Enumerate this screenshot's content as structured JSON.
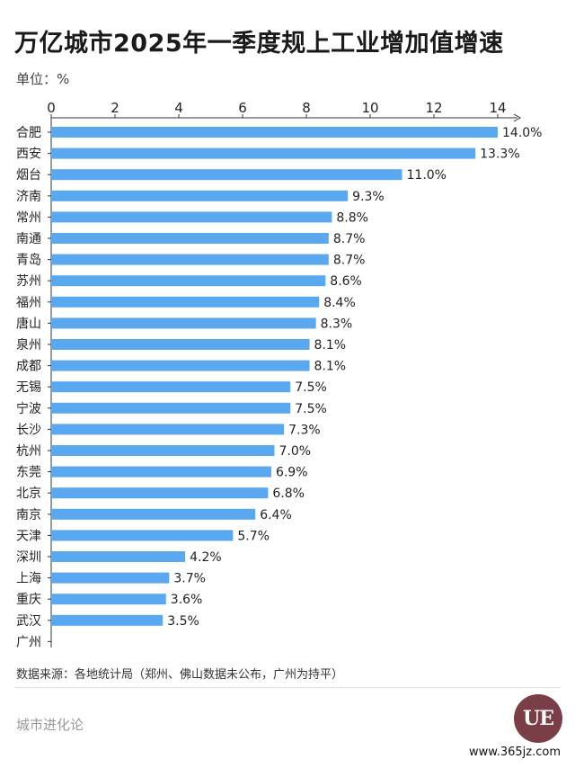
{
  "title": "万亿城市2025年一季度规上工业增加值增速",
  "unit_label": "单位：%",
  "source": "数据来源：各地统计局（郑州、佛山数据未公布，广州为持平）",
  "brand": "城市进化论",
  "logo_text": "UE",
  "website": "www.365jz.com",
  "colors": {
    "bar": "#5aa9f0",
    "axis": "#333333"
  },
  "chart_data": {
    "type": "bar",
    "orientation": "horizontal",
    "title": "万亿城市2025年一季度规上工业增加值增速",
    "xlabel": "",
    "ylabel": "",
    "xlim": [
      0,
      14
    ],
    "x_ticks": [
      0,
      2,
      4,
      6,
      8,
      10,
      12,
      14
    ],
    "categories": [
      "合肥",
      "西安",
      "烟台",
      "济南",
      "常州",
      "南通",
      "青岛",
      "苏州",
      "福州",
      "唐山",
      "泉州",
      "成都",
      "无锡",
      "宁波",
      "长沙",
      "杭州",
      "东莞",
      "北京",
      "南京",
      "天津",
      "深圳",
      "上海",
      "重庆",
      "武汉",
      "广州"
    ],
    "values": [
      14.0,
      13.3,
      11.0,
      9.3,
      8.8,
      8.7,
      8.7,
      8.6,
      8.4,
      8.3,
      8.1,
      8.1,
      7.5,
      7.5,
      7.3,
      7.0,
      6.9,
      6.8,
      6.4,
      5.7,
      4.2,
      3.7,
      3.6,
      3.5,
      null
    ],
    "value_labels": [
      "14.0%",
      "13.3%",
      "11.0%",
      "9.3%",
      "8.8%",
      "8.7%",
      "8.7%",
      "8.6%",
      "8.4%",
      "8.3%",
      "8.1%",
      "8.1%",
      "7.5%",
      "7.5%",
      "7.3%",
      "7.0%",
      "6.9%",
      "6.8%",
      "6.4%",
      "5.7%",
      "4.2%",
      "3.7%",
      "3.6%",
      "3.5%",
      ""
    ],
    "grid": false,
    "legend": "none"
  }
}
